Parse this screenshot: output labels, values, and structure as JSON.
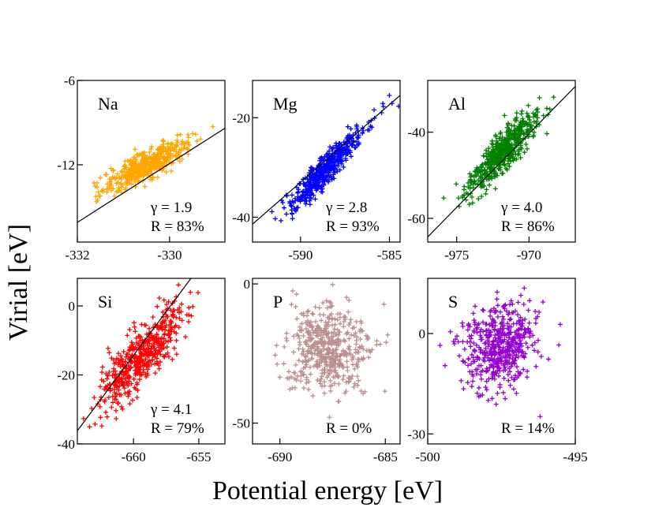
{
  "figure": {
    "xlabel": "Potential energy [eV]",
    "ylabel": "Virial [eV]"
  },
  "chart_data": [
    {
      "type": "scatter",
      "element": "Na",
      "color": "#FFA500",
      "xlim": [
        -332.0,
        -328.8
      ],
      "ylim": [
        -17.5,
        -6.0
      ],
      "xticks": [
        -332,
        -330
      ],
      "xtick_labels": [
        "-332",
        "-330"
      ],
      "yticks": [
        -12,
        -6
      ],
      "ytick_labels": [
        "-12",
        "-6"
      ],
      "center": [
        -330.5,
        -12.0
      ],
      "spread": [
        0.45,
        0.9
      ],
      "n": 500,
      "correlation": 0.83,
      "fit_line": {
        "x": [
          -332.0,
          -328.8
        ],
        "y": [
          -16.1,
          -9.4
        ]
      },
      "annotations": {
        "gamma": "γ = 1.9",
        "r": "R = 83%"
      }
    },
    {
      "type": "scatter",
      "element": "Mg",
      "color": "#0000FF",
      "xlim": [
        -592.7,
        -584.4
      ],
      "ylim": [
        -45.0,
        -12.5
      ],
      "xticks": [
        -590,
        -585
      ],
      "xtick_labels": [
        "-590",
        "-585"
      ],
      "yticks": [
        -40,
        -20
      ],
      "ytick_labels": [
        "-40",
        "-20"
      ],
      "center": [
        -588.5,
        -30.0
      ],
      "spread": [
        1.1,
        4.2
      ],
      "n": 500,
      "correlation": 0.93,
      "fit_line": {
        "x": [
          -592.7,
          -584.4
        ],
        "y": [
          -41.4,
          -15.5
        ]
      },
      "annotations": {
        "gamma": "γ = 2.8",
        "r": "R = 93%"
      }
    },
    {
      "type": "scatter",
      "element": "Al",
      "color": "#008000",
      "xlim": [
        -977.0,
        -966.8
      ],
      "ylim": [
        -65.5,
        -28.0
      ],
      "xticks": [
        -975,
        -970
      ],
      "xtick_labels": [
        "-975",
        "-970"
      ],
      "yticks": [
        -60,
        -40
      ],
      "ytick_labels": [
        "-60",
        "-40"
      ],
      "center": [
        -971.8,
        -44.5
      ],
      "spread": [
        1.2,
        4.8
      ],
      "n": 500,
      "correlation": 0.86,
      "fit_line": {
        "x": [
          -977.0,
          -966.8
        ],
        "y": [
          -64.3,
          -29.4
        ]
      },
      "annotations": {
        "gamma": "γ = 4.0",
        "r": "R = 86%"
      }
    },
    {
      "type": "scatter",
      "element": "Si",
      "color": "#FF0000",
      "xlim": [
        -664.3,
        -653.0
      ],
      "ylim": [
        -40.0,
        8.0
      ],
      "xticks": [
        -660,
        -655
      ],
      "xtick_labels": [
        "-660",
        "-655"
      ],
      "yticks": [
        -40,
        -20,
        0
      ],
      "ytick_labels": [
        "-40",
        "-20",
        "0"
      ],
      "center": [
        -659.3,
        -14.0
      ],
      "spread": [
        1.55,
        7.0
      ],
      "n": 500,
      "correlation": 0.79,
      "fit_line": {
        "x": [
          -664.3,
          -655.6
        ],
        "y": [
          -36.2,
          8.0
        ]
      },
      "annotations": {
        "gamma": "γ = 4.1",
        "r": "R = 79%"
      }
    },
    {
      "type": "scatter",
      "element": "P",
      "color": "#BC8F8F",
      "xlim": [
        -691.3,
        -684.3
      ],
      "ylim": [
        -57.5,
        2.0
      ],
      "xticks": [
        -690,
        -685
      ],
      "xtick_labels": [
        "-690",
        "-685"
      ],
      "yticks": [
        -50,
        0
      ],
      "ytick_labels": [
        "-50",
        "0"
      ],
      "center": [
        -687.7,
        -23.0
      ],
      "spread": [
        0.95,
        8.0
      ],
      "n": 500,
      "correlation": 0.0,
      "fit_line": null,
      "annotations": {
        "r": "R = 0%"
      }
    },
    {
      "type": "scatter",
      "element": "S",
      "color": "#9400D3",
      "xlim": [
        -500.0,
        -495.0
      ],
      "ylim": [
        -33.0,
        16.5
      ],
      "xticks": [
        -500,
        -495
      ],
      "xtick_labels": [
        "-500",
        "-495"
      ],
      "yticks": [
        -30,
        0
      ],
      "ytick_labels": [
        "-30",
        "0"
      ],
      "center": [
        -497.6,
        -4.0
      ],
      "spread": [
        0.62,
        6.4
      ],
      "n": 500,
      "correlation": 0.14,
      "fit_line": null,
      "annotations": {
        "r": "R = 14%"
      }
    }
  ]
}
